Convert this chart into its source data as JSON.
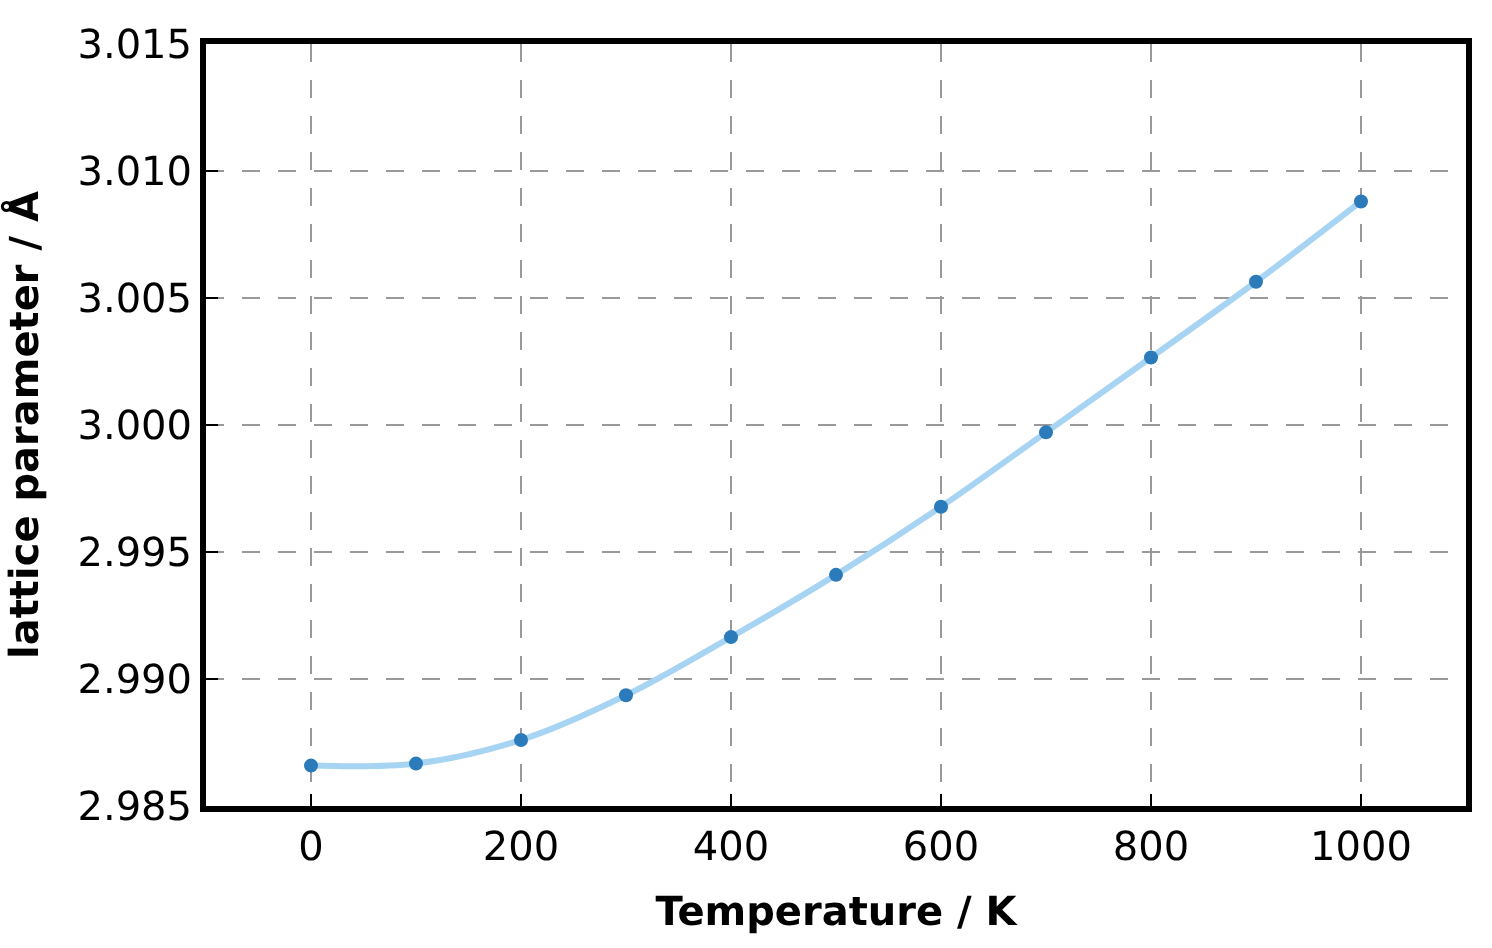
{
  "chart_data": {
    "type": "line",
    "xlabel": "Temperature / K",
    "ylabel": "lattice parameter / Å",
    "x": [
      0,
      100,
      200,
      300,
      400,
      500,
      600,
      700,
      800,
      900,
      1000
    ],
    "series": [
      {
        "color": "#a6d4f2",
        "values": [
          2.98659,
          2.98667,
          2.9876,
          2.98936,
          2.99165,
          2.9941,
          2.99678,
          2.99971,
          3.00266,
          3.00564,
          3.0088
        ]
      },
      {
        "type": "scatter",
        "color": "#2b7bba",
        "marker": "circle",
        "values": [
          2.98659,
          2.98667,
          2.9876,
          2.98936,
          2.99165,
          2.9941,
          2.99678,
          2.99971,
          3.00266,
          3.00564,
          3.0088
        ]
      }
    ],
    "xlim": [
      -100,
      1100
    ],
    "xticks": [
      0,
      200,
      400,
      600,
      800,
      1000
    ],
    "ylim": [
      2.985,
      3.015
    ],
    "yticks": [
      {
        "value": 2.985,
        "label": "2.985"
      },
      {
        "value": 2.99,
        "label": "2.990"
      },
      {
        "value": 2.995,
        "label": "2.995"
      },
      {
        "value": 3.0,
        "label": "3.000"
      },
      {
        "value": 3.005,
        "label": "3.005"
      },
      {
        "value": 3.01,
        "label": "3.010"
      },
      {
        "value": 3.015,
        "label": "3.015"
      }
    ],
    "grid": true,
    "legend": false
  }
}
